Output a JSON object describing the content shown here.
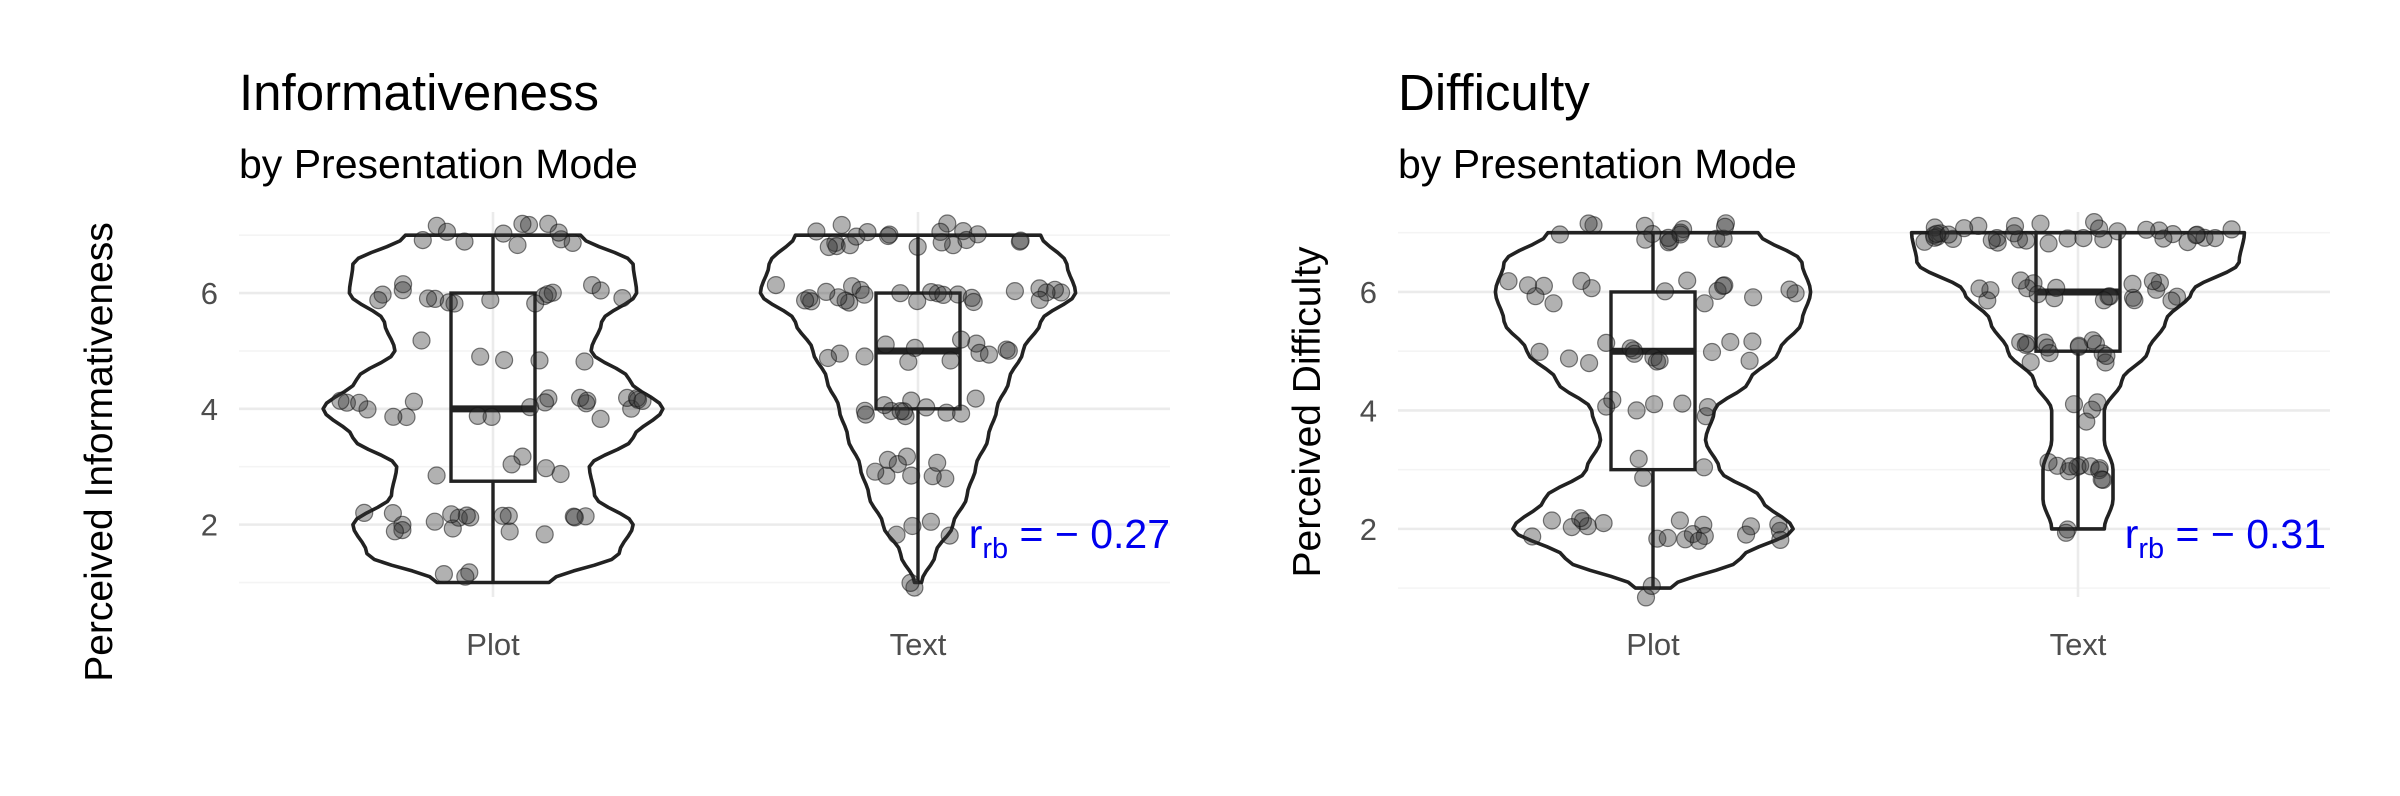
{
  "chart_data": [
    {
      "type": "violin",
      "title": "Informativeness",
      "subtitle": "by Presentation Mode",
      "ylabel": "Perceived Informativeness",
      "xlabel": "",
      "categories": [
        "Plot",
        "Text"
      ],
      "ylim": [
        0.75,
        7.4
      ],
      "yticks": [
        2,
        4,
        6
      ],
      "grid": true,
      "box": [
        {
          "category": "Plot",
          "min": 1,
          "q1": 2.75,
          "median": 4,
          "q3": 6,
          "max": 7
        },
        {
          "category": "Text",
          "min": 1,
          "q1": 4,
          "median": 5,
          "q3": 6,
          "max": 7
        }
      ],
      "density_profile": [
        {
          "category": "Plot",
          "y": [
            1,
            1.5,
            2,
            2.5,
            3,
            3.5,
            4,
            4.5,
            5,
            5.5,
            6,
            6.5,
            7
          ],
          "width": [
            0.32,
            0.72,
            0.8,
            0.58,
            0.55,
            0.8,
            0.97,
            0.78,
            0.56,
            0.62,
            0.82,
            0.8,
            0.5
          ]
        },
        {
          "category": "Text",
          "y": [
            1,
            1.5,
            2,
            2.5,
            3,
            3.5,
            4,
            4.5,
            5,
            5.5,
            6,
            6.5,
            7
          ],
          "width": [
            0.02,
            0.1,
            0.2,
            0.28,
            0.33,
            0.4,
            0.45,
            0.52,
            0.6,
            0.7,
            0.9,
            0.85,
            0.7
          ]
        }
      ],
      "points": [
        {
          "category": "Plot",
          "values": [
            1,
            1,
            1,
            2,
            2,
            2,
            2,
            2,
            2,
            2,
            2,
            2,
            2,
            2,
            2,
            2,
            2,
            2,
            2,
            2,
            2,
            3,
            3,
            3,
            3,
            3,
            4,
            4,
            4,
            4,
            4,
            4,
            4,
            4,
            4,
            4,
            4,
            4,
            4,
            4,
            4,
            4,
            4,
            4,
            4,
            4,
            4,
            5,
            5,
            5,
            5,
            5,
            6,
            6,
            6,
            6,
            6,
            6,
            6,
            6,
            6,
            6,
            6,
            6,
            6,
            6,
            6,
            6,
            7,
            7,
            7,
            7,
            7,
            7,
            7,
            7,
            7,
            7,
            7,
            7
          ]
        },
        {
          "category": "Text",
          "values": [
            1,
            1,
            2,
            2,
            2,
            2,
            3,
            3,
            3,
            3,
            3,
            3,
            3,
            3,
            3,
            4,
            4,
            4,
            4,
            4,
            4,
            4,
            4,
            4,
            4,
            4,
            4,
            5,
            5,
            5,
            5,
            5,
            5,
            5,
            5,
            5,
            5,
            5,
            5,
            5,
            6,
            6,
            6,
            6,
            6,
            6,
            6,
            6,
            6,
            6,
            6,
            6,
            6,
            6,
            6,
            6,
            6,
            6,
            6,
            6,
            6,
            6,
            6,
            6,
            6,
            7,
            7,
            7,
            7,
            7,
            7,
            7,
            7,
            7,
            7,
            7,
            7,
            7,
            7,
            7,
            7,
            7,
            7,
            7,
            7
          ]
        }
      ],
      "annotation": {
        "text": "r",
        "subscript": "rb",
        "value": " = − 0.27",
        "color": "#0000ee"
      }
    },
    {
      "type": "violin",
      "title": "Difficulty",
      "subtitle": "by Presentation Mode",
      "ylabel": "Perceived Difficulty",
      "xlabel": "",
      "categories": [
        "Plot",
        "Text"
      ],
      "ylim": [
        0.85,
        7.35
      ],
      "yticks": [
        2,
        4,
        6
      ],
      "grid": true,
      "box": [
        {
          "category": "Plot",
          "min": 1,
          "q1": 3,
          "median": 5,
          "q3": 6,
          "max": 7
        },
        {
          "category": "Text",
          "min": 2,
          "q1": 5,
          "median": 6,
          "q3": 7,
          "max": 7
        }
      ],
      "density_profile": [
        {
          "category": "Plot",
          "y": [
            1,
            1.5,
            2,
            2.5,
            3,
            3.5,
            4,
            4.5,
            5,
            5.5,
            6,
            6.5,
            7
          ],
          "width": [
            0.1,
            0.5,
            0.8,
            0.62,
            0.38,
            0.3,
            0.35,
            0.55,
            0.72,
            0.85,
            0.9,
            0.85,
            0.6
          ]
        },
        {
          "category": "Text",
          "y": [
            2,
            2.5,
            3,
            3.5,
            4,
            4.5,
            5,
            5.5,
            6,
            6.5,
            7
          ],
          "width": [
            0.15,
            0.2,
            0.2,
            0.15,
            0.15,
            0.25,
            0.4,
            0.5,
            0.65,
            0.92,
            0.95
          ]
        }
      ],
      "points": [
        {
          "category": "Plot",
          "values": [
            1,
            1,
            2,
            2,
            2,
            2,
            2,
            2,
            2,
            2,
            2,
            2,
            2,
            2,
            2,
            2,
            2,
            2,
            2,
            2,
            2,
            2,
            3,
            3,
            3,
            4,
            4,
            4,
            4,
            4,
            4,
            4,
            5,
            5,
            5,
            5,
            5,
            5,
            5,
            5,
            5,
            5,
            5,
            5,
            5,
            5,
            6,
            6,
            6,
            6,
            6,
            6,
            6,
            6,
            6,
            6,
            6,
            6,
            6,
            6,
            6,
            6,
            7,
            7,
            7,
            7,
            7,
            7,
            7,
            7,
            7,
            7,
            7,
            7,
            7,
            7,
            7,
            7
          ]
        },
        {
          "category": "Text",
          "values": [
            2,
            2,
            3,
            3,
            3,
            3,
            3,
            3,
            3,
            3,
            3,
            3,
            3,
            4,
            4,
            4,
            4,
            5,
            5,
            5,
            5,
            5,
            5,
            5,
            5,
            5,
            5,
            5,
            5,
            5,
            5,
            6,
            6,
            6,
            6,
            6,
            6,
            6,
            6,
            6,
            6,
            6,
            6,
            6,
            6,
            6,
            6,
            6,
            6,
            6,
            6,
            7,
            7,
            7,
            7,
            7,
            7,
            7,
            7,
            7,
            7,
            7,
            7,
            7,
            7,
            7,
            7,
            7,
            7,
            7,
            7,
            7,
            7,
            7,
            7,
            7,
            7,
            7,
            7,
            7,
            7,
            7,
            7,
            7,
            7,
            7,
            7
          ]
        }
      ],
      "annotation": {
        "text": "r",
        "subscript": "rb",
        "value": " = − 0.31",
        "color": "#0000ee"
      }
    }
  ]
}
